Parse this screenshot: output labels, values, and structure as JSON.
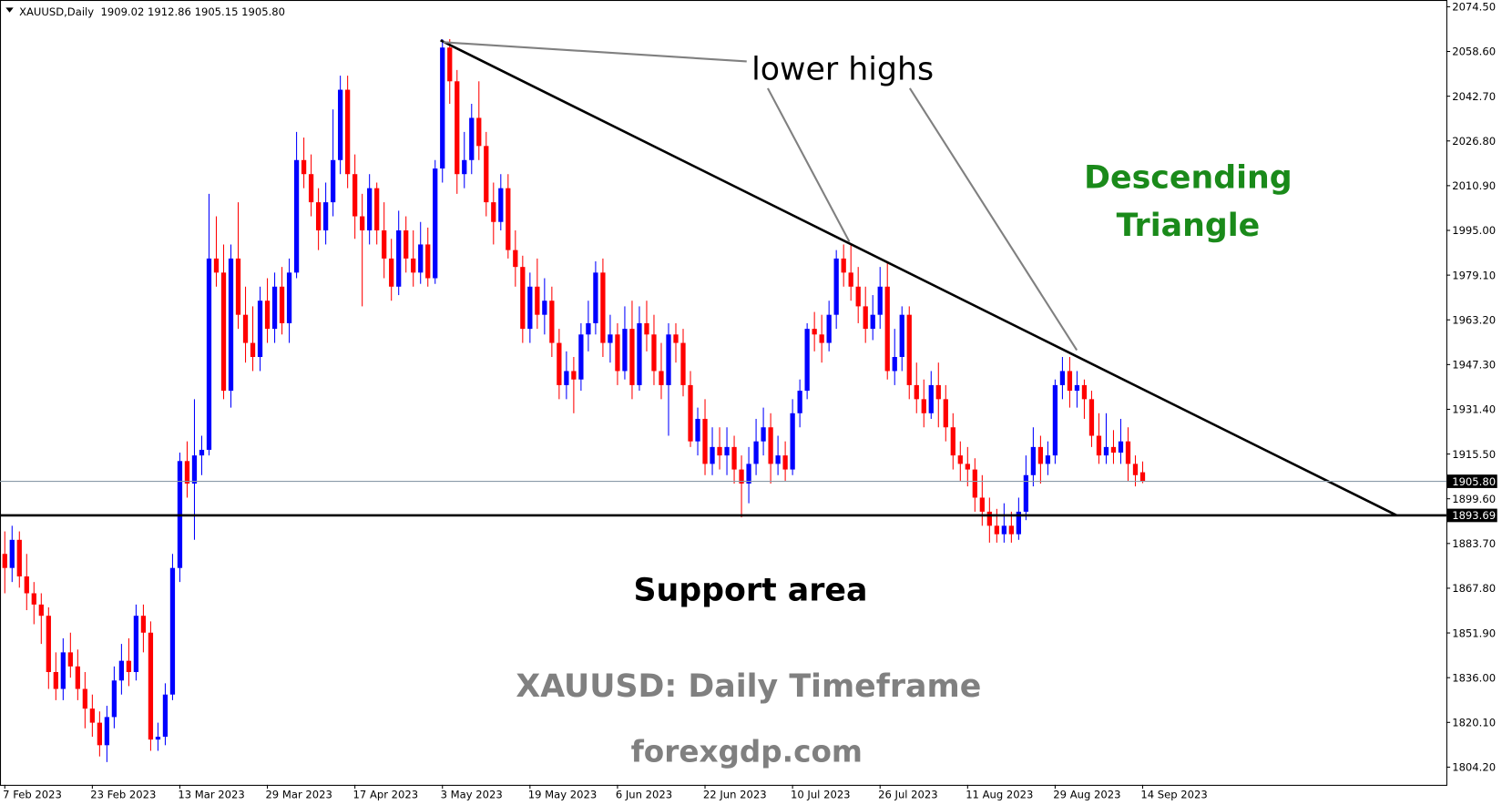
{
  "chart_data": {
    "type": "candlestick",
    "header": "XAUUSD,Daily  1909.02 1912.86 1905.15 1905.80",
    "annotations": [
      "lower highs",
      "Descending",
      "Triangle",
      "Support area",
      "XAUUSD: Daily Timeframe",
      "forexgdp.com"
    ],
    "up_color": "#0000ff",
    "down_color": "#ff0000",
    "ylim": [
      1797.9,
      2076.9
    ],
    "yticks": [
      {
        "value": 2074.5,
        "label": "2074.50"
      },
      {
        "value": 2058.6,
        "label": "2058.60"
      },
      {
        "value": 2042.7,
        "label": "2042.70"
      },
      {
        "value": 2026.8,
        "label": "2026.80"
      },
      {
        "value": 2010.9,
        "label": "2010.90"
      },
      {
        "value": 1995,
        "label": "1995.00"
      },
      {
        "value": 1979.1,
        "label": "1979.10"
      },
      {
        "value": 1963.2,
        "label": "1963.20"
      },
      {
        "value": 1947.3,
        "label": "1947.30"
      },
      {
        "value": 1931.4,
        "label": "1931.40"
      },
      {
        "value": 1915.5,
        "label": "1915.50"
      },
      {
        "value": 1899.6,
        "label": "1899.60"
      },
      {
        "value": 1883.7,
        "label": "1883.70"
      },
      {
        "value": 1867.8,
        "label": "1867.80"
      },
      {
        "value": 1851.9,
        "label": "1851.90"
      },
      {
        "value": 1836,
        "label": "1836.00"
      },
      {
        "value": 1820.1,
        "label": "1820.10"
      },
      {
        "value": 1804.2,
        "label": "1804.20"
      }
    ],
    "price_lines": [
      {
        "value": 1905.8,
        "label": "1905.80",
        "color": "#8a9aa8"
      },
      {
        "value": 1893.69,
        "label": "1893.69",
        "color": "#000000"
      }
    ],
    "categories": [
      "7 Feb 2023",
      null,
      null,
      null,
      null,
      null,
      null,
      null,
      null,
      null,
      null,
      null,
      "23 Feb 2023",
      null,
      null,
      null,
      null,
      null,
      null,
      null,
      null,
      null,
      null,
      null,
      "13 Mar 2023",
      null,
      null,
      null,
      null,
      null,
      null,
      null,
      null,
      null,
      null,
      null,
      "29 Mar 2023",
      null,
      null,
      null,
      null,
      null,
      null,
      null,
      null,
      null,
      null,
      null,
      "17 Apr 2023",
      null,
      null,
      null,
      null,
      null,
      null,
      null,
      null,
      null,
      null,
      null,
      "3 May 2023",
      null,
      null,
      null,
      null,
      null,
      null,
      null,
      null,
      null,
      null,
      null,
      "19 May 2023",
      null,
      null,
      null,
      null,
      null,
      null,
      null,
      null,
      null,
      null,
      null,
      "6 Jun 2023",
      null,
      null,
      null,
      null,
      null,
      null,
      null,
      null,
      null,
      null,
      null,
      "22 Jun 2023",
      null,
      null,
      null,
      null,
      null,
      null,
      null,
      null,
      null,
      null,
      null,
      "10 Jul 2023",
      null,
      null,
      null,
      null,
      null,
      null,
      null,
      null,
      null,
      null,
      null,
      "26 Jul 2023",
      null,
      null,
      null,
      null,
      null,
      null,
      null,
      null,
      null,
      null,
      null,
      "11 Aug 2023",
      null,
      null,
      null,
      null,
      null,
      null,
      null,
      null,
      null,
      null,
      null,
      "29 Aug 2023",
      null,
      null,
      null,
      null,
      null,
      null,
      null,
      null,
      null,
      null,
      null,
      "14 Sep 2023"
    ],
    "ohlc": [
      [
        1880,
        1888,
        1866,
        1875
      ],
      [
        1875,
        1890,
        1870,
        1885
      ],
      [
        1885,
        1888,
        1868,
        1872
      ],
      [
        1872,
        1880,
        1860,
        1866
      ],
      [
        1866,
        1870,
        1855,
        1862
      ],
      [
        1862,
        1866,
        1848,
        1858
      ],
      [
        1858,
        1861,
        1832,
        1838
      ],
      [
        1838,
        1845,
        1828,
        1832
      ],
      [
        1832,
        1850,
        1828,
        1845
      ],
      [
        1845,
        1852,
        1836,
        1840
      ],
      [
        1840,
        1846,
        1828,
        1832
      ],
      [
        1832,
        1838,
        1818,
        1825
      ],
      [
        1825,
        1830,
        1815,
        1820
      ],
      [
        1820,
        1824,
        1808,
        1812
      ],
      [
        1812,
        1826,
        1806,
        1822
      ],
      [
        1822,
        1840,
        1818,
        1835
      ],
      [
        1835,
        1848,
        1830,
        1842
      ],
      [
        1842,
        1850,
        1833,
        1838
      ],
      [
        1838,
        1862,
        1835,
        1858
      ],
      [
        1858,
        1862,
        1845,
        1852
      ],
      [
        1852,
        1856,
        1810,
        1814
      ],
      [
        1814,
        1820,
        1810,
        1815
      ],
      [
        1815,
        1834,
        1812,
        1830
      ],
      [
        1830,
        1880,
        1828,
        1875
      ],
      [
        1875,
        1916,
        1870,
        1913
      ],
      [
        1913,
        1920,
        1900,
        1905
      ],
      [
        1905,
        1935,
        1885,
        1915
      ],
      [
        1915,
        1922,
        1908,
        1917
      ],
      [
        1917,
        2008,
        1915,
        1985
      ],
      [
        1985,
        2000,
        1975,
        1980
      ],
      [
        1980,
        1990,
        1935,
        1938
      ],
      [
        1938,
        1990,
        1932,
        1985
      ],
      [
        1985,
        2005,
        1960,
        1965
      ],
      [
        1965,
        1975,
        1948,
        1955
      ],
      [
        1955,
        1968,
        1945,
        1950
      ],
      [
        1950,
        1975,
        1945,
        1970
      ],
      [
        1970,
        1978,
        1955,
        1960
      ],
      [
        1960,
        1980,
        1955,
        1975
      ],
      [
        1975,
        1982,
        1958,
        1962
      ],
      [
        1962,
        1985,
        1955,
        1980
      ],
      [
        1980,
        2030,
        1978,
        2020
      ],
      [
        2020,
        2028,
        2010,
        2015
      ],
      [
        2015,
        2022,
        2000,
        2005
      ],
      [
        2005,
        2010,
        1988,
        1995
      ],
      [
        1995,
        2012,
        1990,
        2005
      ],
      [
        2005,
        2038,
        2000,
        2020
      ],
      [
        2020,
        2050,
        2015,
        2045
      ],
      [
        2045,
        2050,
        2010,
        2015
      ],
      [
        2015,
        2022,
        1992,
        2000
      ],
      [
        2000,
        2008,
        1968,
        1995
      ],
      [
        1995,
        2015,
        1990,
        2010
      ],
      [
        2010,
        2012,
        1990,
        1995
      ],
      [
        1995,
        2005,
        1978,
        1985
      ],
      [
        1985,
        1992,
        1970,
        1975
      ],
      [
        1975,
        2002,
        1972,
        1995
      ],
      [
        1995,
        2000,
        1980,
        1985
      ],
      [
        1985,
        1995,
        1975,
        1980
      ],
      [
        1980,
        1998,
        1976,
        1990
      ],
      [
        1990,
        1996,
        1975,
        1978
      ],
      [
        1978,
        2020,
        1976,
        2017
      ],
      [
        2017,
        2063,
        2012,
        2060
      ],
      [
        2060,
        2063,
        2040,
        2048
      ],
      [
        2048,
        2052,
        2008,
        2015
      ],
      [
        2015,
        2030,
        2010,
        2020
      ],
      [
        2020,
        2040,
        2015,
        2035
      ],
      [
        2035,
        2048,
        2020,
        2025
      ],
      [
        2025,
        2030,
        2000,
        2005
      ],
      [
        2005,
        2012,
        1990,
        1998
      ],
      [
        1998,
        2015,
        1995,
        2010
      ],
      [
        2010,
        2015,
        1985,
        1988
      ],
      [
        1988,
        1995,
        1975,
        1982
      ],
      [
        1982,
        1986,
        1955,
        1960
      ],
      [
        1960,
        1980,
        1955,
        1975
      ],
      [
        1975,
        1985,
        1960,
        1965
      ],
      [
        1965,
        1978,
        1958,
        1970
      ],
      [
        1970,
        1975,
        1950,
        1955
      ],
      [
        1955,
        1960,
        1935,
        1940
      ],
      [
        1940,
        1952,
        1935,
        1945
      ],
      [
        1945,
        1950,
        1930,
        1942
      ],
      [
        1942,
        1962,
        1938,
        1958
      ],
      [
        1958,
        1970,
        1952,
        1962
      ],
      [
        1962,
        1984,
        1958,
        1980
      ],
      [
        1980,
        1985,
        1950,
        1955
      ],
      [
        1955,
        1965,
        1948,
        1958
      ],
      [
        1958,
        1962,
        1940,
        1945
      ],
      [
        1945,
        1968,
        1942,
        1960
      ],
      [
        1960,
        1970,
        1935,
        1940
      ],
      [
        1940,
        1968,
        1938,
        1962
      ],
      [
        1962,
        1970,
        1952,
        1958
      ],
      [
        1958,
        1965,
        1940,
        1945
      ],
      [
        1945,
        1955,
        1935,
        1940
      ],
      [
        1940,
        1962,
        1922,
        1958
      ],
      [
        1958,
        1962,
        1948,
        1955
      ],
      [
        1955,
        1960,
        1936,
        1940
      ],
      [
        1940,
        1945,
        1918,
        1920
      ],
      [
        1920,
        1932,
        1915,
        1928
      ],
      [
        1928,
        1935,
        1908,
        1912
      ],
      [
        1912,
        1925,
        1908,
        1918
      ],
      [
        1918,
        1925,
        1910,
        1915
      ],
      [
        1915,
        1925,
        1908,
        1918
      ],
      [
        1918,
        1922,
        1905,
        1910
      ],
      [
        1910,
        1915,
        1893,
        1905
      ],
      [
        1905,
        1918,
        1898,
        1912
      ],
      [
        1912,
        1928,
        1908,
        1920
      ],
      [
        1920,
        1932,
        1915,
        1925
      ],
      [
        1925,
        1930,
        1905,
        1912
      ],
      [
        1912,
        1922,
        1908,
        1915
      ],
      [
        1915,
        1920,
        1906,
        1910
      ],
      [
        1910,
        1935,
        1908,
        1930
      ],
      [
        1930,
        1942,
        1925,
        1938
      ],
      [
        1938,
        1962,
        1935,
        1960
      ],
      [
        1960,
        1966,
        1952,
        1958
      ],
      [
        1958,
        1965,
        1948,
        1955
      ],
      [
        1955,
        1970,
        1952,
        1965
      ],
      [
        1965,
        1988,
        1960,
        1985
      ],
      [
        1985,
        1990,
        1975,
        1980
      ],
      [
        1980,
        1990,
        1970,
        1975
      ],
      [
        1975,
        1982,
        1962,
        1968
      ],
      [
        1968,
        1975,
        1955,
        1960
      ],
      [
        1960,
        1972,
        1956,
        1965
      ],
      [
        1965,
        1982,
        1960,
        1975
      ],
      [
        1975,
        1984,
        1942,
        1945
      ],
      [
        1945,
        1960,
        1940,
        1950
      ],
      [
        1950,
        1968,
        1945,
        1965
      ],
      [
        1965,
        1968,
        1935,
        1940
      ],
      [
        1940,
        1948,
        1930,
        1935
      ],
      [
        1935,
        1942,
        1925,
        1930
      ],
      [
        1930,
        1945,
        1928,
        1940
      ],
      [
        1940,
        1948,
        1925,
        1935
      ],
      [
        1935,
        1940,
        1920,
        1925
      ],
      [
        1925,
        1930,
        1910,
        1915
      ],
      [
        1915,
        1920,
        1906,
        1912
      ],
      [
        1912,
        1918,
        1904,
        1910
      ],
      [
        1910,
        1914,
        1895,
        1900
      ],
      [
        1900,
        1908,
        1890,
        1895
      ],
      [
        1895,
        1900,
        1884,
        1890
      ],
      [
        1890,
        1896,
        1884,
        1887
      ],
      [
        1887,
        1898,
        1884,
        1890
      ],
      [
        1890,
        1895,
        1884,
        1887
      ],
      [
        1887,
        1900,
        1885,
        1895
      ],
      [
        1895,
        1915,
        1892,
        1908
      ],
      [
        1908,
        1925,
        1904,
        1918
      ],
      [
        1918,
        1922,
        1905,
        1912
      ],
      [
        1912,
        1920,
        1908,
        1915
      ],
      [
        1915,
        1942,
        1912,
        1940
      ],
      [
        1940,
        1950,
        1935,
        1945
      ],
      [
        1945,
        1950,
        1932,
        1938
      ],
      [
        1938,
        1945,
        1932,
        1940
      ],
      [
        1940,
        1942,
        1928,
        1935
      ],
      [
        1935,
        1938,
        1918,
        1922
      ],
      [
        1922,
        1930,
        1912,
        1915
      ],
      [
        1915,
        1930,
        1912,
        1918
      ],
      [
        1918,
        1924,
        1912,
        1916
      ],
      [
        1916,
        1928,
        1912,
        1920
      ],
      [
        1920,
        1925,
        1906,
        1912
      ],
      [
        1912,
        1915,
        1904,
        1908
      ],
      [
        1909.02,
        1912.86,
        1905.15,
        1905.8
      ]
    ]
  }
}
